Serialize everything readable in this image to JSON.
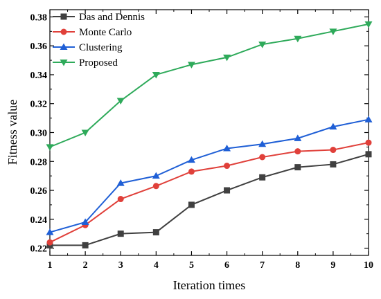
{
  "chart_data": {
    "type": "line",
    "title": "",
    "xlabel": "Iteration times",
    "ylabel": "Fitness value",
    "x": [
      1,
      2,
      3,
      4,
      5,
      6,
      7,
      8,
      9,
      10
    ],
    "xlim": [
      1,
      10
    ],
    "ylim": [
      0.215,
      0.385
    ],
    "y_ticks": [
      0.22,
      0.24,
      0.26,
      0.28,
      0.3,
      0.32,
      0.34,
      0.36,
      0.38
    ],
    "y_tick_labels": [
      "0.22",
      "0.24",
      "0.26",
      "0.28",
      "0.30",
      "0.32",
      "0.34",
      "0.36",
      "0.38"
    ],
    "x_tick_labels": [
      "1",
      "2",
      "3",
      "4",
      "5",
      "6",
      "7",
      "8",
      "9",
      "10"
    ],
    "grid": false,
    "legend_position": "top-left",
    "series": [
      {
        "name": "Das and Dennis",
        "color": "#404040",
        "marker": "square",
        "values": [
          0.222,
          0.222,
          0.23,
          0.231,
          0.25,
          0.26,
          0.269,
          0.276,
          0.278,
          0.285
        ]
      },
      {
        "name": "Monte Carlo",
        "color": "#e0403a",
        "marker": "circle",
        "values": [
          0.224,
          0.236,
          0.254,
          0.263,
          0.273,
          0.277,
          0.283,
          0.287,
          0.288,
          0.293
        ]
      },
      {
        "name": "Clustering",
        "color": "#1f5fd6",
        "marker": "triangle-up",
        "values": [
          0.231,
          0.238,
          0.265,
          0.27,
          0.281,
          0.289,
          0.292,
          0.296,
          0.304,
          0.309
        ]
      },
      {
        "name": "Proposed",
        "color": "#2eaa5a",
        "marker": "triangle-down",
        "values": [
          0.29,
          0.3,
          0.322,
          0.34,
          0.347,
          0.352,
          0.361,
          0.365,
          0.37,
          0.375
        ]
      }
    ]
  }
}
